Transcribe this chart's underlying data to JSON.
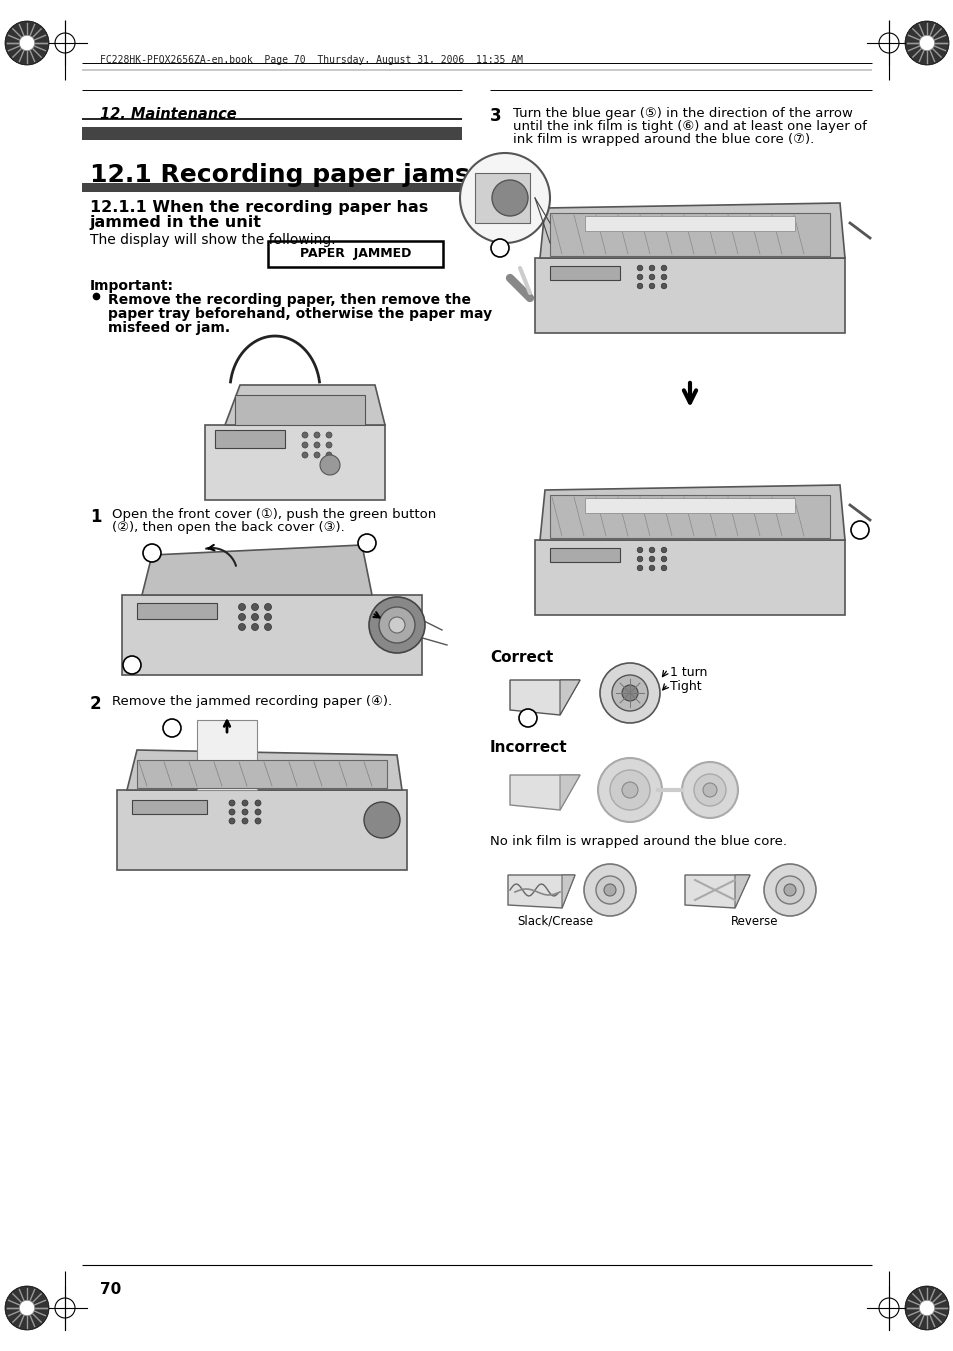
{
  "page_bg": "#ffffff",
  "header_text": "FC228HK-PFQX2656ZA-en.book  Page 70  Thursday, August 31, 2006  11:35 AM",
  "section_title": "12. Maintenance",
  "chapter_title": "12.1 Recording paper jams",
  "sub_title_1": "12.1.1 When the recording paper has",
  "sub_title_2": "jammed in the unit",
  "display_text": "The display will show the following.",
  "paper_jammed_label": "PAPER  JAMMED",
  "important_label": "Important:",
  "bullet_1": "Remove the recording paper, then remove the",
  "bullet_2": "paper tray beforehand, otherwise the paper may",
  "bullet_3": "misfeed or jam.",
  "step1_num": "1",
  "step1_line1": "Open the front cover (①), push the green button",
  "step1_line2": "(②), then open the back cover (③).",
  "step2_num": "2",
  "step2_text": "Remove the jammed recording paper (④).",
  "step3_num": "3",
  "step3_line1": "Turn the blue gear (⑤) in the direction of the arrow",
  "step3_line2": "until the ink film is tight (⑥) and at least one layer of",
  "step3_line3": "ink film is wrapped around the blue core (⑦).",
  "correct_label": "Correct",
  "incorrect_label": "Incorrect",
  "one_turn": "1 turn",
  "tight": "Tight",
  "no_ink_text": "No ink film is wrapped around the blue core.",
  "slack_label": "Slack/Crease",
  "reverse_label": "Reverse",
  "page_number": "70",
  "bar_color": "#444444",
  "rule_color": "#000000",
  "text_color": "#000000",
  "img_fill": "#e8e8e8",
  "img_stroke": "#888888"
}
